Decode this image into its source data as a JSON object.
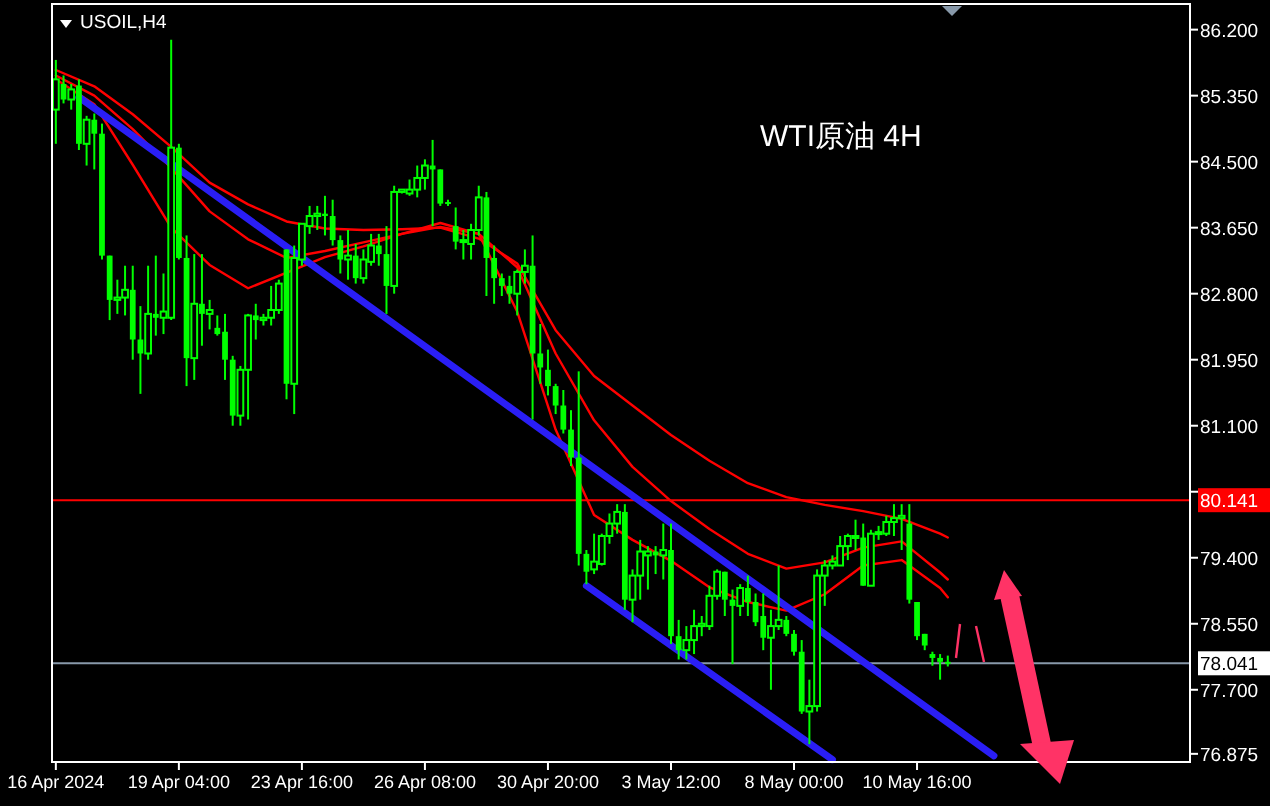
{
  "chart_data": {
    "type": "candlestick",
    "title": "USOIL,H4",
    "annotations": [
      "WTI原油 4H"
    ],
    "color": "#00ff00",
    "categories": [
      "16 Apr 2024",
      null,
      null,
      null,
      null,
      null,
      null,
      null,
      null,
      null,
      null,
      null,
      null,
      null,
      null,
      null,
      "19 Apr 04:00",
      null,
      null,
      null,
      null,
      null,
      null,
      null,
      null,
      null,
      null,
      null,
      null,
      null,
      null,
      null,
      "23 Apr 16:00",
      null,
      null,
      null,
      null,
      null,
      null,
      null,
      null,
      null,
      null,
      null,
      null,
      null,
      null,
      null,
      "26 Apr 08:00",
      null,
      null,
      null,
      null,
      null,
      null,
      null,
      null,
      null,
      null,
      null,
      null,
      null,
      null,
      null,
      "30 Apr 20:00",
      null,
      null,
      null,
      null,
      null,
      null,
      null,
      null,
      null,
      null,
      null,
      null,
      null,
      null,
      null,
      "3 May 12:00",
      null,
      null,
      null,
      null,
      null,
      null,
      null,
      null,
      null,
      null,
      null,
      null,
      null,
      null,
      null,
      "8 May 00:00",
      null,
      null,
      null,
      null,
      null,
      null,
      null,
      null,
      null,
      null,
      null,
      null,
      null,
      null,
      null,
      "10 May 16:00",
      null,
      null,
      null,
      null,
      null,
      null,
      null,
      null,
      null,
      null,
      null,
      null,
      null,
      null,
      null,
      null,
      null,
      null,
      null,
      null,
      null,
      null,
      null,
      null,
      null,
      null,
      null,
      null,
      null,
      null,
      null,
      null,
      null,
      null,
      null
    ],
    "ohlc": [
      [
        85.17,
        85.81,
        84.73,
        85.56
      ],
      [
        85.5,
        85.61,
        85.25,
        85.3
      ],
      [
        85.3,
        85.5,
        85.17,
        85.43
      ],
      [
        85.48,
        85.56,
        84.65,
        84.73
      ],
      [
        84.73,
        85.09,
        84.45,
        85.04
      ],
      [
        85.04,
        85.12,
        84.4,
        84.86
      ],
      [
        84.86,
        84.99,
        83.24,
        83.29
      ],
      [
        83.29,
        83.29,
        82.46,
        82.72
      ],
      [
        82.72,
        82.98,
        82.54,
        82.75
      ],
      [
        82.75,
        83.16,
        82.52,
        82.85
      ],
      [
        82.85,
        83.16,
        81.95,
        82.21
      ],
      [
        82.21,
        82.64,
        81.51,
        82.03
      ],
      [
        82.03,
        83.16,
        81.95,
        82.54
      ],
      [
        82.54,
        83.29,
        82.26,
        82.49
      ],
      [
        82.49,
        83.06,
        82.28,
        82.57
      ],
      [
        82.49,
        86.07,
        82.46,
        84.68
      ],
      [
        84.68,
        84.73,
        83.24,
        83.26
      ],
      [
        83.26,
        83.55,
        81.61,
        81.97
      ],
      [
        81.97,
        83.31,
        81.69,
        82.67
      ],
      [
        82.67,
        83.31,
        82.13,
        82.54
      ],
      [
        82.54,
        82.72,
        82.34,
        82.59
      ],
      [
        82.36,
        82.52,
        82.26,
        82.28
      ],
      [
        82.31,
        82.54,
        81.69,
        81.95
      ],
      [
        81.95,
        82.0,
        81.1,
        81.23
      ],
      [
        81.23,
        81.87,
        81.1,
        81.82
      ],
      [
        81.82,
        82.54,
        81.18,
        82.52
      ],
      [
        82.52,
        82.67,
        82.21,
        82.46
      ],
      [
        82.46,
        82.54,
        82.39,
        82.49
      ],
      [
        82.49,
        82.9,
        82.39,
        82.59
      ],
      [
        82.59,
        82.98,
        82.54,
        82.93
      ],
      [
        83.37,
        83.37,
        81.44,
        81.64
      ],
      [
        81.64,
        83.42,
        81.25,
        83.26
      ],
      [
        83.24,
        83.7,
        83.16,
        83.7
      ],
      [
        83.67,
        83.93,
        83.57,
        83.8
      ],
      [
        83.8,
        83.93,
        83.62,
        83.83
      ],
      [
        83.83,
        84.06,
        83.55,
        83.8
      ],
      [
        83.8,
        84.01,
        83.42,
        83.49
      ],
      [
        83.49,
        83.55,
        83.06,
        83.24
      ],
      [
        83.24,
        83.62,
        82.98,
        83.29
      ],
      [
        83.29,
        83.44,
        82.93,
        83.0
      ],
      [
        83.0,
        83.37,
        82.93,
        83.24
      ],
      [
        83.21,
        83.57,
        83.16,
        83.42
      ],
      [
        83.42,
        83.57,
        83.16,
        83.31
      ],
      [
        83.31,
        83.67,
        82.54,
        82.9
      ],
      [
        82.9,
        84.19,
        82.8,
        84.11
      ],
      [
        84.11,
        84.14,
        84.09,
        84.14
      ],
      [
        84.09,
        84.27,
        84.06,
        84.14
      ],
      [
        84.14,
        84.45,
        84.04,
        84.29
      ],
      [
        84.29,
        84.53,
        84.14,
        84.45
      ],
      [
        84.45,
        84.78,
        83.67,
        84.4
      ],
      [
        84.4,
        84.4,
        83.93,
        83.96
      ],
      [
        83.98,
        84.01,
        83.93,
        83.96
      ],
      [
        83.67,
        83.91,
        83.37,
        83.47
      ],
      [
        83.47,
        83.62,
        83.24,
        83.49
      ],
      [
        83.44,
        83.7,
        83.24,
        83.62
      ],
      [
        83.62,
        84.19,
        83.55,
        84.04
      ],
      [
        84.04,
        84.11,
        82.77,
        83.26
      ],
      [
        83.26,
        83.42,
        82.67,
        83.0
      ],
      [
        83.0,
        83.06,
        82.77,
        82.9
      ],
      [
        82.9,
        83.03,
        82.67,
        82.8
      ],
      [
        82.8,
        83.11,
        82.52,
        83.08
      ],
      [
        83.08,
        83.37,
        82.93,
        83.16
      ],
      [
        83.16,
        83.55,
        81.18,
        82.03
      ],
      [
        82.03,
        82.41,
        81.64,
        81.85
      ],
      [
        81.82,
        82.08,
        81.49,
        81.61
      ],
      [
        81.61,
        81.64,
        81.25,
        81.36
      ],
      [
        81.36,
        81.56,
        81.0,
        81.05
      ],
      [
        81.05,
        81.3,
        80.58,
        80.69
      ],
      [
        80.69,
        81.8,
        79.3,
        79.45
      ],
      [
        79.45,
        79.5,
        79.06,
        79.22
      ],
      [
        79.25,
        79.71,
        79.19,
        79.35
      ],
      [
        79.32,
        79.71,
        79.3,
        79.68
      ],
      [
        79.68,
        79.97,
        79.58,
        79.84
      ],
      [
        79.84,
        80.09,
        79.71,
        79.99
      ],
      [
        79.99,
        80.09,
        78.73,
        78.86
      ],
      [
        78.86,
        79.25,
        78.57,
        79.17
      ],
      [
        79.17,
        79.63,
        78.86,
        79.48
      ],
      [
        79.43,
        79.55,
        78.99,
        79.48
      ],
      [
        79.48,
        79.55,
        79.19,
        79.43
      ],
      [
        79.43,
        79.84,
        79.12,
        79.5
      ],
      [
        79.5,
        79.84,
        78.29,
        78.39
      ],
      [
        78.39,
        78.6,
        78.09,
        78.21
      ],
      [
        78.21,
        78.52,
        78.09,
        78.34
      ],
      [
        78.34,
        78.73,
        78.16,
        78.52
      ],
      [
        78.52,
        78.65,
        78.39,
        78.55
      ],
      [
        78.52,
        79.04,
        78.47,
        78.91
      ],
      [
        78.91,
        79.25,
        78.86,
        79.22
      ],
      [
        79.22,
        79.22,
        78.65,
        78.86
      ],
      [
        78.86,
        78.99,
        78.03,
        78.78
      ],
      [
        78.78,
        79.06,
        78.65,
        79.01
      ],
      [
        79.01,
        79.17,
        78.65,
        78.83
      ],
      [
        78.83,
        78.94,
        78.52,
        78.57
      ],
      [
        78.65,
        78.94,
        78.21,
        78.37
      ],
      [
        78.37,
        78.73,
        77.7,
        78.52
      ],
      [
        78.52,
        79.3,
        78.47,
        78.6
      ],
      [
        78.6,
        78.65,
        78.39,
        78.42
      ],
      [
        78.42,
        78.47,
        78.14,
        78.19
      ],
      [
        78.19,
        78.34,
        77.39,
        77.42
      ],
      [
        77.42,
        77.83,
        77.0,
        77.49
      ],
      [
        77.49,
        79.25,
        77.42,
        79.17
      ],
      [
        79.17,
        79.37,
        78.78,
        79.3
      ],
      [
        79.3,
        79.43,
        79.25,
        79.35
      ],
      [
        79.3,
        79.68,
        79.3,
        79.55
      ],
      [
        79.55,
        79.71,
        79.37,
        79.68
      ],
      [
        79.68,
        79.89,
        79.5,
        79.68
      ],
      [
        79.66,
        79.84,
        79.04,
        79.04
      ],
      [
        79.04,
        79.76,
        79.04,
        79.71
      ],
      [
        79.71,
        79.81,
        79.63,
        79.73
      ],
      [
        79.71,
        79.94,
        79.68,
        79.86
      ],
      [
        79.86,
        80.09,
        79.68,
        79.91
      ],
      [
        79.91,
        80.09,
        79.5,
        79.94
      ],
      [
        79.84,
        80.09,
        78.81,
        78.86
      ],
      [
        78.83,
        78.83,
        78.34,
        78.39
      ],
      [
        78.42,
        78.42,
        78.21,
        78.27
      ],
      [
        78.16,
        78.19,
        78.01,
        78.11
      ],
      [
        78.11,
        78.16,
        77.83,
        78.06
      ],
      [
        78.06,
        78.14,
        78.0,
        78.04
      ],
      null,
      null,
      null,
      null,
      null,
      null,
      null,
      null,
      null,
      null,
      null,
      null,
      null,
      null,
      null,
      null,
      null,
      null,
      null,
      null,
      null,
      null,
      null,
      null,
      null,
      null,
      null,
      null,
      null,
      null,
      null
    ],
    "series": [
      {
        "type": "line",
        "color": "#ff0000",
        "values": [
          85.68,
          null,
          null,
          null,
          null,
          85.47,
          null,
          null,
          null,
          null,
          85.11,
          null,
          null,
          null,
          null,
          84.69,
          null,
          null,
          null,
          null,
          84.23,
          null,
          null,
          null,
          null,
          83.95,
          null,
          null,
          null,
          null,
          83.73,
          null,
          null,
          null,
          null,
          83.64,
          null,
          null,
          null,
          null,
          83.62,
          null,
          null,
          null,
          null,
          83.63,
          null,
          null,
          null,
          null,
          83.65,
          null,
          null,
          null,
          null,
          83.51,
          null,
          null,
          null,
          null,
          83.19,
          null,
          null,
          null,
          null,
          82.33,
          null,
          null,
          null,
          null,
          81.74,
          null,
          null,
          null,
          null,
          81.36,
          null,
          null,
          null,
          null,
          80.98,
          null,
          null,
          null,
          null,
          80.65,
          null,
          null,
          null,
          null,
          80.36,
          null,
          null,
          null,
          null,
          80.18,
          null,
          null,
          null,
          null,
          80.08,
          null,
          null,
          null,
          null,
          80.0,
          null,
          null,
          null,
          null,
          79.9,
          null,
          null,
          null,
          null,
          79.71,
          79.66,
          null,
          null,
          null,
          null,
          null,
          null,
          null,
          null,
          null,
          null,
          null,
          null,
          null,
          null,
          null,
          null,
          null,
          null,
          null,
          null,
          null,
          null,
          null,
          null,
          null,
          null,
          null,
          null,
          null,
          null,
          null
        ]
      },
      {
        "type": "line",
        "color": "#ff0000",
        "values": [
          85.61,
          null,
          null,
          null,
          null,
          85.35,
          null,
          null,
          null,
          null,
          84.92,
          null,
          null,
          null,
          null,
          84.42,
          null,
          null,
          null,
          null,
          83.86,
          null,
          null,
          null,
          null,
          83.5,
          null,
          null,
          null,
          null,
          83.26,
          null,
          null,
          null,
          null,
          83.35,
          null,
          null,
          null,
          null,
          83.46,
          null,
          null,
          null,
          null,
          83.57,
          null,
          null,
          null,
          null,
          83.66,
          null,
          null,
          null,
          null,
          83.57,
          null,
          null,
          null,
          null,
          83.14,
          null,
          null,
          null,
          null,
          82.03,
          null,
          null,
          null,
          null,
          81.17,
          null,
          null,
          null,
          null,
          80.57,
          null,
          null,
          null,
          null,
          80.13,
          null,
          null,
          null,
          null,
          79.77,
          null,
          null,
          null,
          null,
          79.45,
          null,
          null,
          null,
          null,
          79.26,
          null,
          null,
          null,
          null,
          79.34,
          null,
          null,
          null,
          null,
          79.53,
          null,
          null,
          null,
          null,
          79.61,
          null,
          null,
          null,
          null,
          79.21,
          79.12,
          null,
          null,
          null,
          null,
          null,
          null,
          null,
          null,
          null,
          null,
          null,
          null,
          null,
          null,
          null,
          null,
          null,
          null,
          null,
          null,
          null,
          null,
          null,
          null,
          null,
          null,
          null,
          null,
          null,
          null,
          null
        ]
      },
      {
        "type": "line",
        "color": "#ff0000",
        "values": [
          85.56,
          null,
          null,
          null,
          null,
          85.24,
          null,
          null,
          null,
          null,
          84.46,
          null,
          null,
          null,
          null,
          83.65,
          null,
          null,
          null,
          null,
          83.17,
          null,
          null,
          null,
          null,
          82.87,
          null,
          null,
          null,
          null,
          null,
          null,
          null,
          null,
          null,
          83.27,
          null,
          null,
          null,
          null,
          83.41,
          null,
          null,
          null,
          null,
          83.57,
          null,
          null,
          null,
          null,
          83.71,
          null,
          null,
          null,
          null,
          83.57,
          null,
          null,
          null,
          null,
          82.57,
          null,
          null,
          null,
          null,
          81.05,
          null,
          null,
          null,
          null,
          79.95,
          null,
          null,
          null,
          null,
          79.63,
          null,
          null,
          null,
          null,
          79.36,
          null,
          null,
          null,
          null,
          79.02,
          null,
          null,
          null,
          null,
          78.83,
          null,
          null,
          null,
          null,
          78.72,
          null,
          null,
          null,
          null,
          78.93,
          null,
          null,
          null,
          null,
          79.3,
          null,
          null,
          null,
          null,
          79.37,
          null,
          null,
          null,
          null,
          79.01,
          78.89,
          null,
          null,
          null,
          null,
          null,
          null,
          null,
          null,
          null,
          null,
          null,
          null,
          null,
          null,
          null,
          null,
          null,
          null,
          null,
          null,
          null,
          null,
          null,
          null,
          null,
          null,
          null,
          null,
          null,
          null,
          null
        ]
      },
      {
        "type": "line",
        "color": "#2a1ef5",
        "values": [
          null,
          null,
          null,
          85.33,
          null,
          null,
          null,
          null,
          null,
          null,
          null,
          null,
          null,
          null,
          null,
          null,
          null,
          null,
          null,
          null,
          null,
          null,
          null,
          null,
          null,
          null,
          null,
          null,
          null,
          null,
          null,
          null,
          null,
          null,
          null,
          null,
          null,
          null,
          null,
          null,
          null,
          null,
          null,
          null,
          null,
          null,
          null,
          null,
          null,
          null,
          null,
          null,
          null,
          null,
          null,
          null,
          null,
          null,
          null,
          null,
          null,
          null,
          null,
          null,
          null,
          null,
          null,
          null,
          null,
          null,
          null,
          null,
          null,
          null,
          null,
          null,
          null,
          null,
          null,
          null,
          null,
          null,
          null,
          null,
          null,
          null,
          null,
          null,
          null,
          null,
          null,
          null,
          null,
          null,
          null,
          null,
          null,
          null,
          null,
          null,
          null,
          null,
          null,
          null,
          null,
          null,
          null,
          null,
          null,
          null,
          null,
          null,
          null,
          null,
          null,
          null,
          null,
          null,
          null,
          null,
          null,
          null,
          76.85,
          null,
          null,
          null,
          null,
          null,
          null,
          null,
          null,
          null,
          null,
          null,
          null,
          null,
          null,
          null,
          null,
          null,
          null,
          null,
          null,
          null,
          null,
          null,
          null,
          null
        ]
      },
      {
        "type": "line",
        "color": "#2a1ef5",
        "values": [
          null,
          null,
          null,
          null,
          null,
          null,
          null,
          null,
          null,
          null,
          null,
          null,
          null,
          null,
          null,
          null,
          null,
          null,
          null,
          null,
          null,
          null,
          null,
          null,
          null,
          null,
          null,
          null,
          null,
          null,
          null,
          null,
          null,
          null,
          null,
          null,
          null,
          null,
          null,
          null,
          null,
          null,
          null,
          null,
          null,
          null,
          null,
          null,
          null,
          null,
          null,
          null,
          null,
          null,
          null,
          null,
          null,
          null,
          null,
          null,
          null,
          null,
          null,
          null,
          null,
          null,
          null,
          null,
          null,
          79.04,
          null,
          null,
          null,
          null,
          null,
          null,
          null,
          null,
          null,
          null,
          null,
          null,
          null,
          null,
          null,
          null,
          null,
          null,
          null,
          null,
          null,
          null,
          null,
          null,
          null,
          null,
          null,
          null,
          null,
          null,
          null,
          76.8,
          null,
          null,
          null,
          null,
          null,
          null,
          null,
          null,
          null,
          null,
          null,
          null,
          null,
          null,
          null,
          null,
          null,
          null,
          null,
          null,
          null,
          null,
          null,
          null,
          null,
          null,
          null,
          null,
          null,
          null,
          null,
          null,
          null,
          null,
          null,
          null,
          null,
          null,
          null,
          null,
          null,
          null,
          null,
          null,
          null,
          null
        ]
      }
    ],
    "ref_lines": [
      {
        "axis": "y",
        "value": 80.141,
        "label": "80.141",
        "color": "#ff0000"
      },
      {
        "axis": "y",
        "value": 78.041,
        "label": "78.041",
        "color": "#8899aa"
      }
    ],
    "ylim": [
      76.77,
      86.53
    ],
    "yticks": [
      {
        "value": 86.2,
        "label": "86.200"
      },
      {
        "value": 85.35,
        "label": "85.350"
      },
      {
        "value": 84.5,
        "label": "84.500"
      },
      {
        "value": 83.65,
        "label": "83.650"
      },
      {
        "value": 82.8,
        "label": "82.800"
      },
      {
        "value": 81.95,
        "label": "81.950"
      },
      {
        "value": 81.1,
        "label": "81.100"
      },
      {
        "value": 80.25,
        "label": null
      },
      {
        "value": 79.4,
        "label": "79.400"
      },
      {
        "value": 78.55,
        "label": "78.550"
      },
      {
        "value": 77.7,
        "label": "77.700"
      },
      {
        "value": 76.875,
        "label": "76.875"
      }
    ]
  }
}
